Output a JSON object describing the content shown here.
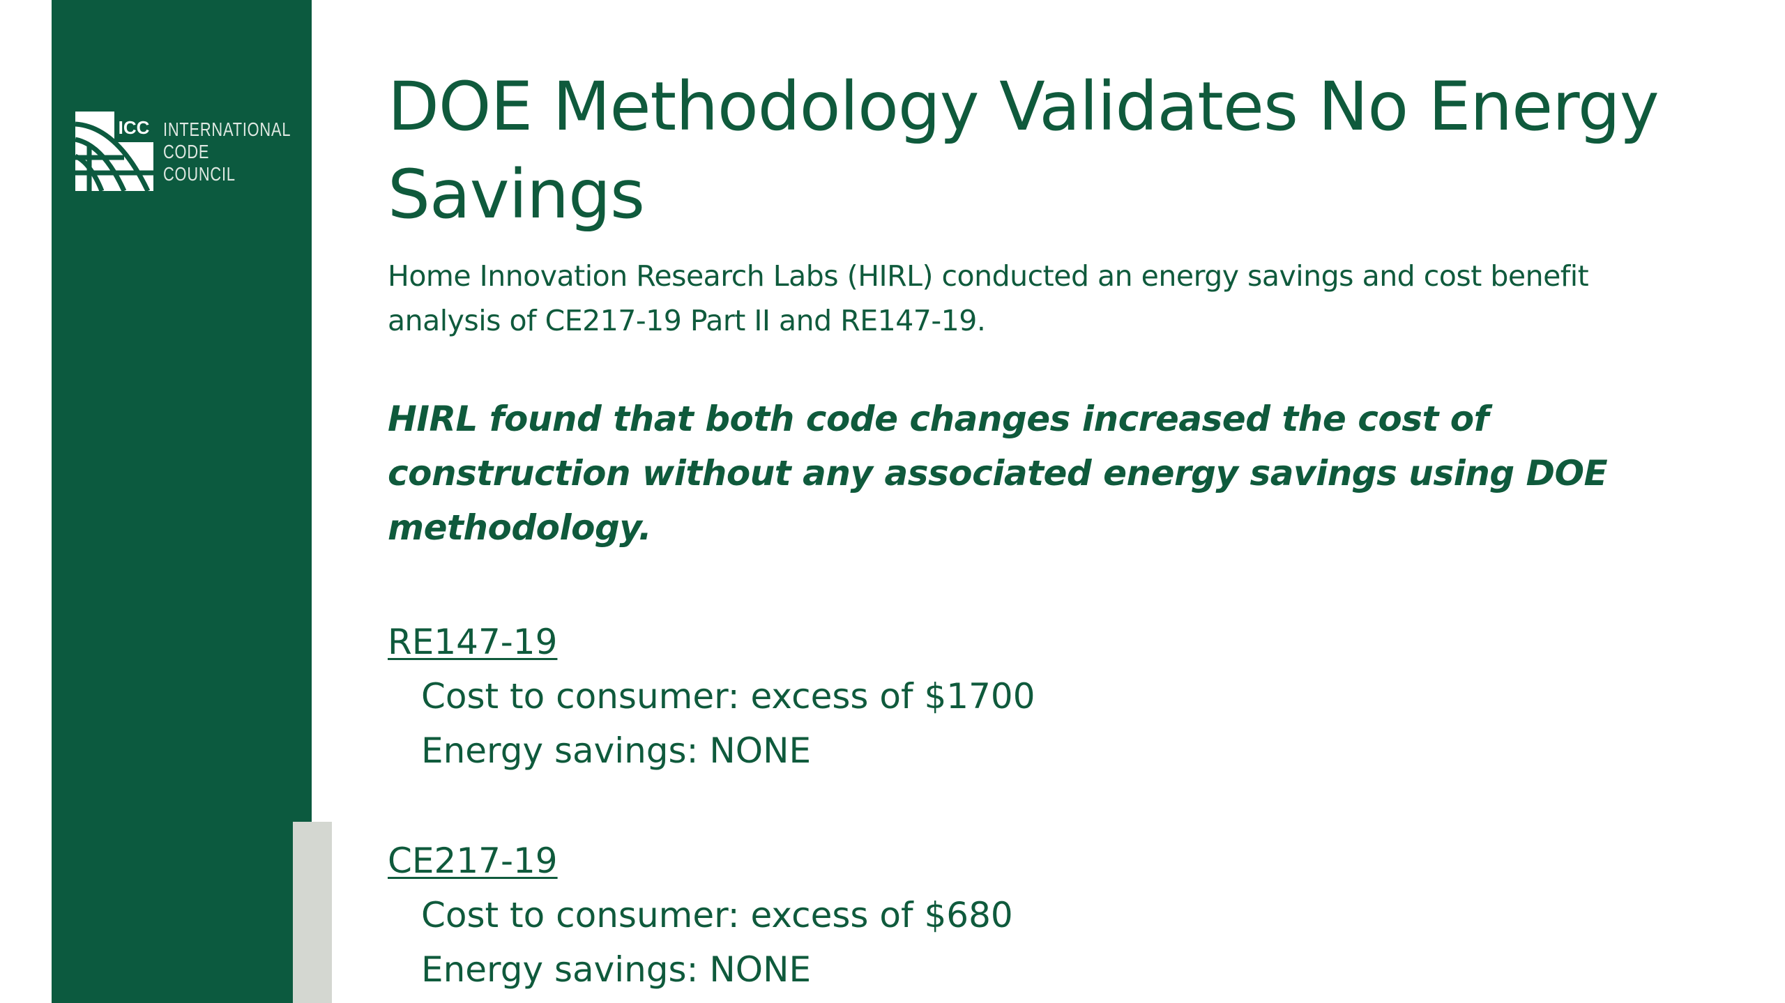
{
  "brand": {
    "logo_mark": "ICC",
    "logo_lines": [
      "INTERNATIONAL",
      "CODE",
      "COUNCIL"
    ],
    "logo_icon": "globe-grid-icon",
    "sidebar_color": "#0c5a3f",
    "accent_color": "#d4d7d1",
    "text_color": "#0f5a3c"
  },
  "slide": {
    "title": "DOE Methodology Validates No Energy Savings",
    "intro": "Home Innovation Research Labs (HIRL) conducted an energy savings and cost benefit analysis of CE217-19 Part II and RE147-19.",
    "finding": "HIRL found that both code changes increased the cost of construction without any associated energy savings using DOE methodology.",
    "items": [
      {
        "code": "RE147-19",
        "cost": "Cost to consumer: excess of $1700",
        "savings": "Energy savings: NONE"
      },
      {
        "code": "CE217-19",
        "cost": "Cost to consumer: excess of $680",
        "savings": "Energy savings: NONE"
      }
    ]
  }
}
